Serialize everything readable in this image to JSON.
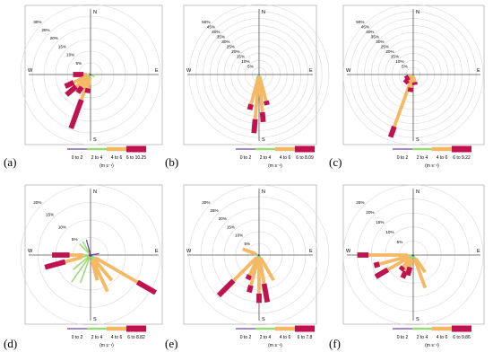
{
  "chart_data": [
    {
      "panel_label": "(a)",
      "type": "wind-rose",
      "cardinal": [
        "N",
        "E",
        "S",
        "W"
      ],
      "radial_ticks": [
        "5%",
        "10%",
        "15%",
        "20%",
        "25%",
        "30%"
      ],
      "legend": {
        "items": [
          "0 to 2",
          "2 to 4",
          "4 to 6",
          "6 to 10.25"
        ],
        "unit": "(m s⁻¹)"
      },
      "petals": [
        {
          "dir": 270,
          "c": [
            0.5,
            1.0,
            1.5,
            4.5
          ]
        },
        {
          "dir": 245,
          "c": [
            0.5,
            1.0,
            6.5,
            4.0
          ]
        },
        {
          "dir": 230,
          "c": [
            0.5,
            1.0,
            6.5,
            5.5
          ]
        },
        {
          "dir": 215,
          "c": [
            0.5,
            1.0,
            5.0,
            3.0
          ]
        },
        {
          "dir": 200,
          "c": [
            0.5,
            1.0,
            10.0,
            13.0
          ]
        },
        {
          "dir": 190,
          "c": [
            0.5,
            1.0,
            4.5,
            2.0
          ]
        },
        {
          "dir": 120,
          "c": [
            0.5,
            1.5,
            0,
            0
          ]
        },
        {
          "dir": 300,
          "c": [
            0.5,
            0.5,
            0,
            0
          ]
        }
      ]
    },
    {
      "panel_label": "(b)",
      "type": "wind-rose",
      "cardinal": [
        "N",
        "E",
        "S",
        "W"
      ],
      "radial_ticks": [
        "5%",
        "10%",
        "15%",
        "20%",
        "25%",
        "30%",
        "35%",
        "40%",
        "45%",
        "50%"
      ],
      "legend": {
        "items": [
          "0 to 2",
          "2 to 4",
          "4 to 6",
          "6 to 8.09"
        ],
        "unit": "(m s⁻¹)"
      },
      "petals": [
        {
          "dir": 195,
          "c": [
            0.5,
            1.5,
            20.0,
            4.0
          ]
        },
        {
          "dir": 185,
          "c": [
            0.5,
            1.5,
            30.0,
            10.0
          ]
        },
        {
          "dir": 175,
          "c": [
            0.5,
            1.5,
            25.0,
            7.0
          ]
        },
        {
          "dir": 165,
          "c": [
            0.5,
            1.0,
            18.0,
            3.0
          ]
        },
        {
          "dir": 215,
          "c": [
            0.5,
            3.0,
            0,
            0
          ]
        }
      ]
    },
    {
      "panel_label": "(c)",
      "type": "wind-rose",
      "cardinal": [
        "N",
        "E",
        "S",
        "W"
      ],
      "radial_ticks": [
        "5%",
        "10%",
        "15%",
        "20%",
        "25%",
        "30%",
        "35%",
        "40%",
        "45%",
        "50%"
      ],
      "legend": {
        "items": [
          "0 to 2",
          "2 to 4",
          "4 to 6",
          "6 to 9.22"
        ],
        "unit": "(m s⁻¹)"
      },
      "petals": [
        {
          "dir": 200,
          "c": [
            0.5,
            1.0,
            38.0,
            8.0
          ]
        },
        {
          "dir": 190,
          "c": [
            0.5,
            1.0,
            8.0,
            3.0
          ]
        },
        {
          "dir": 225,
          "c": [
            0.5,
            1.0,
            4.0,
            3.0
          ]
        },
        {
          "dir": 240,
          "c": [
            0.5,
            1.0,
            2.0,
            3.0
          ]
        },
        {
          "dir": 170,
          "c": [
            0.5,
            1.0,
            4.0,
            2.0
          ]
        }
      ]
    },
    {
      "panel_label": "(d)",
      "type": "wind-rose",
      "cardinal": [
        "N",
        "E",
        "S",
        "W"
      ],
      "radial_ticks": [
        "5%",
        "10%",
        "15%",
        "20%"
      ],
      "legend": {
        "items": [
          "0 to 2",
          "2 to 4",
          "4 to 6",
          "6 to 8.82"
        ],
        "unit": "(m s⁻¹)"
      },
      "petals": [
        {
          "dir": 270,
          "c": [
            0.5,
            1.5,
            4.0,
            5.0
          ]
        },
        {
          "dir": 255,
          "c": [
            0.5,
            2.0,
            5.0,
            6.0
          ]
        },
        {
          "dir": 120,
          "c": [
            0.5,
            1.0,
            14.0,
            6.0
          ]
        },
        {
          "dir": 140,
          "c": [
            0.5,
            1.0,
            8.0,
            0
          ]
        },
        {
          "dir": 155,
          "c": [
            0.5,
            1.0,
            10.0,
            0
          ]
        },
        {
          "dir": 165,
          "c": [
            0.5,
            1.0,
            6.0,
            0
          ]
        },
        {
          "dir": 200,
          "c": [
            0.5,
            8.0,
            0,
            0
          ]
        },
        {
          "dir": 215,
          "c": [
            0.5,
            9.0,
            0,
            0
          ]
        },
        {
          "dir": 230,
          "c": [
            0.5,
            6.0,
            0,
            0
          ]
        },
        {
          "dir": 315,
          "c": [
            0.5,
            4.0,
            0,
            0
          ]
        },
        {
          "dir": 330,
          "c": [
            0.5,
            4.0,
            0,
            0
          ]
        },
        {
          "dir": 345,
          "c": [
            4.5,
            0,
            0,
            0
          ]
        },
        {
          "dir": 80,
          "c": [
            2.5,
            0,
            0,
            0
          ]
        }
      ]
    },
    {
      "panel_label": "(e)",
      "type": "wind-rose",
      "cardinal": [
        "N",
        "E",
        "S",
        "W"
      ],
      "radial_ticks": [
        "5%",
        "10%",
        "15%",
        "20%",
        "25%",
        "30%"
      ],
      "legend": {
        "items": [
          "0 to 2",
          "2 to 4",
          "4 to 6",
          "6 to 7.8"
        ],
        "unit": "(m s⁻¹)"
      },
      "petals": [
        {
          "dir": 225,
          "c": [
            0.5,
            1.0,
            14.0,
            9.0
          ]
        },
        {
          "dir": 205,
          "c": [
            0.5,
            1.0,
            8.0,
            2.0
          ]
        },
        {
          "dir": 195,
          "c": [
            0.5,
            1.0,
            12.0,
            3.0
          ]
        },
        {
          "dir": 180,
          "c": [
            0.5,
            1.0,
            15.0,
            4.0
          ]
        },
        {
          "dir": 170,
          "c": [
            0.5,
            1.0,
            11.0,
            8.0
          ]
        },
        {
          "dir": 150,
          "c": [
            0.5,
            1.0,
            11.0,
            0
          ]
        },
        {
          "dir": 290,
          "c": [
            0.5,
            1.0,
            6.0,
            0
          ]
        }
      ]
    },
    {
      "panel_label": "(f)",
      "type": "wind-rose",
      "cardinal": [
        "N",
        "E",
        "S",
        "W"
      ],
      "radial_ticks": [
        "5%",
        "10%",
        "15%",
        "20%",
        "25%"
      ],
      "legend": {
        "items": [
          "0 to 2",
          "2 to 4",
          "4 to 6",
          "6 to 9.86"
        ],
        "unit": "(m s⁻¹)"
      },
      "petals": [
        {
          "dir": 270,
          "c": [
            0.5,
            1.5,
            14.0,
            4.0
          ]
        },
        {
          "dir": 255,
          "c": [
            0.5,
            1.0,
            11.0,
            2.0
          ]
        },
        {
          "dir": 240,
          "c": [
            0.5,
            1.0,
            9.0,
            5.0
          ]
        },
        {
          "dir": 220,
          "c": [
            0.5,
            1.0,
            4.0,
            1.5
          ]
        },
        {
          "dir": 205,
          "c": [
            0.5,
            1.0,
            5.0,
            2.5
          ]
        },
        {
          "dir": 195,
          "c": [
            0.5,
            1.0,
            3.0,
            3.0
          ]
        },
        {
          "dir": 160,
          "c": [
            0.5,
            1.0,
            11.0,
            0
          ]
        },
        {
          "dir": 145,
          "c": [
            0.5,
            1.0,
            6.0,
            0
          ]
        }
      ]
    }
  ],
  "colors": {
    "bins": [
      "#6b3fa0",
      "#9ed977",
      "#f5b865",
      "#c0124e"
    ],
    "grid": "#d9d9d9",
    "axis": "#555555",
    "frame": "#b5b5b5"
  }
}
